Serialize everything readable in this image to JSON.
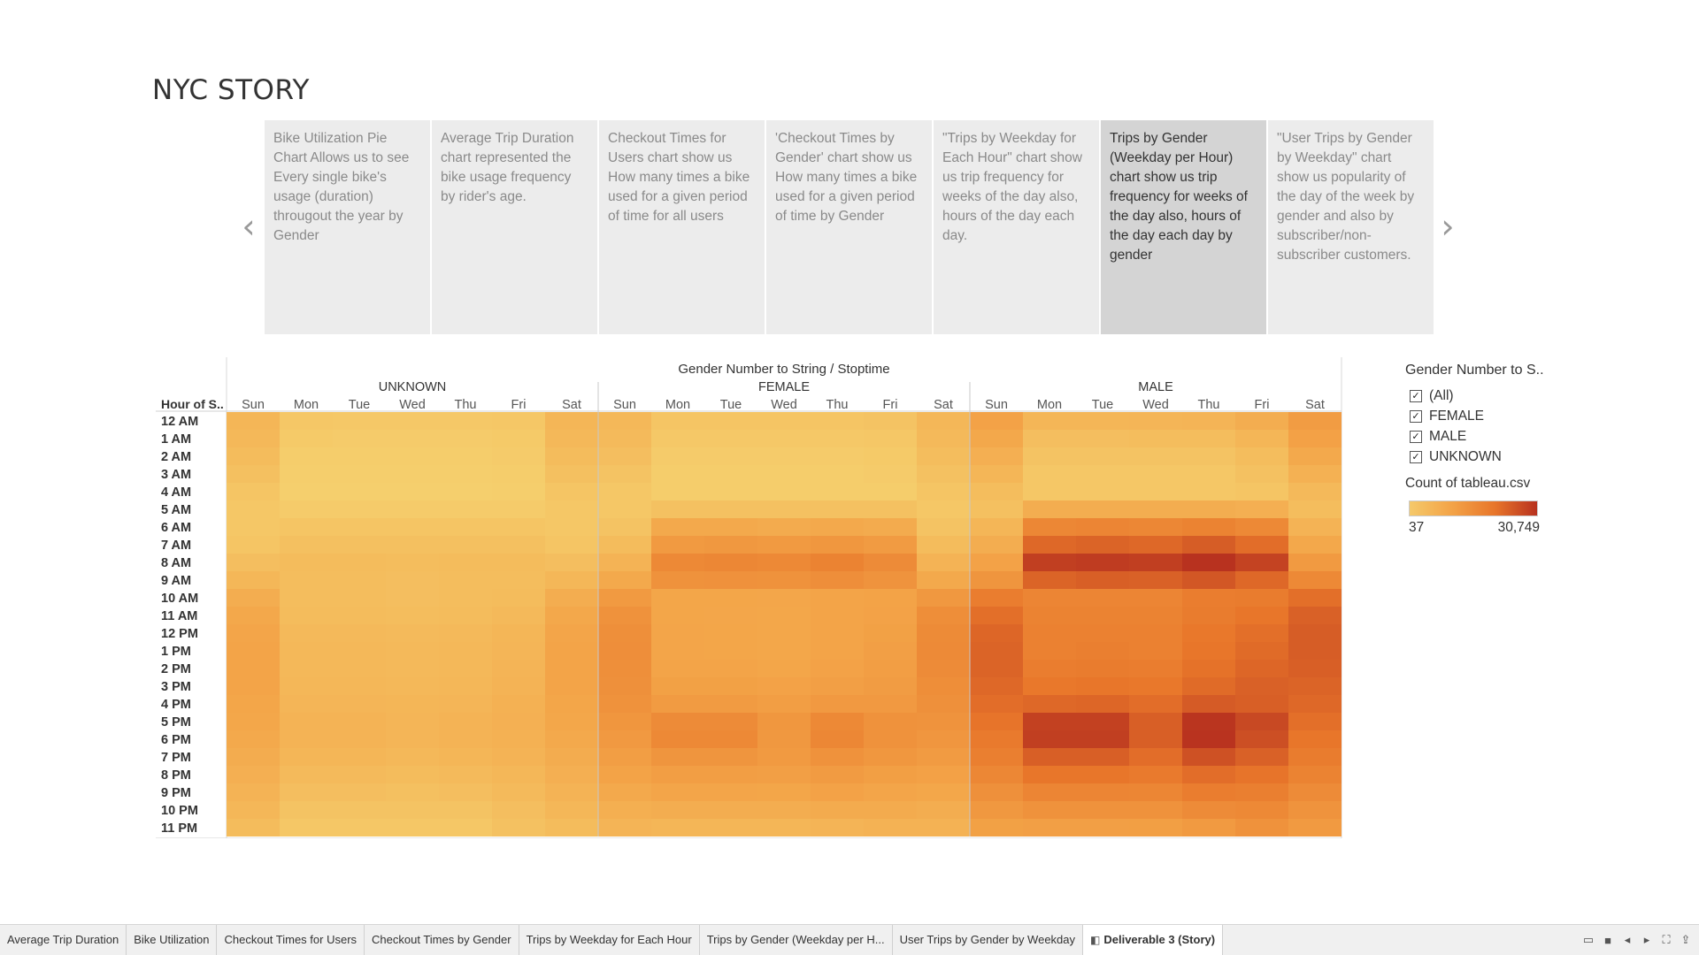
{
  "story": {
    "title": "NYC STORY",
    "prev_arrow": "‹",
    "next_arrow": "›",
    "points": [
      "Bike Utilization Pie Chart Allows us to see Every single bike's usage (duration) througout the year by Gender",
      "Average Trip Duration chart represented the bike usage frequency by rider's age.",
      "Checkout Times for Users chart show us How many times a bike used for a given period of time for all users",
      "'Checkout Times by Gender' chart show us How many times a bike used for a given period of time by Gender",
      "\"Trips by Weekday for Each Hour\"  chart show us trip frequency for weeks of the day also, hours of the day each day.",
      "Trips by Gender (Weekday per Hour) chart show us trip frequency for weeks of the day also, hours of the day each day by gender",
      "\"User Trips by Gender by Weekday\" chart show us popularity of the day of the week by gender  and also by subscriber/non-subscriber customers."
    ],
    "active_point": 5
  },
  "legend": {
    "filter_title": "Gender Number to S..",
    "items": [
      "(All)",
      "FEMALE",
      "MALE",
      "UNKNOWN"
    ],
    "check_glyph": "✓",
    "count_title": "Count of tableau.csv",
    "min_label": "37",
    "max_label": "30,749"
  },
  "tabs": {
    "items": [
      "Average Trip Duration",
      "Bike Utilization",
      "Checkout Times for Users",
      "Checkout Times by Gender",
      "Trips by Weekday for Each Hour",
      "Trips by Gender (Weekday per H...",
      "User Trips by Gender by Weekday",
      "Deliverable 3 (Story)"
    ],
    "active_index": 7,
    "story_icon": "◧",
    "controls": [
      "▭",
      "■",
      "◂",
      "▸",
      "⛶",
      "⇪"
    ]
  },
  "chart_data": {
    "type": "heatmap",
    "title": "Gender Number to String / Stoptime",
    "row_header": "Hour of S..",
    "groups": [
      "UNKNOWN",
      "FEMALE",
      "MALE"
    ],
    "days": [
      "Sun",
      "Mon",
      "Tue",
      "Wed",
      "Thu",
      "Fri",
      "Sat"
    ],
    "hours": [
      "12 AM",
      "1 AM",
      "2 AM",
      "3 AM",
      "4 AM",
      "5 AM",
      "6 AM",
      "7 AM",
      "8 AM",
      "9 AM",
      "10 AM",
      "11 AM",
      "12 PM",
      "1 PM",
      "2 PM",
      "3 PM",
      "4 PM",
      "5 PM",
      "6 PM",
      "7 PM",
      "8 PM",
      "9 PM",
      "10 PM",
      "11 PM"
    ],
    "color_min": 37,
    "color_max": 30749,
    "color_scale": [
      "#f5d06e",
      "#f3a347",
      "#e8762a",
      "#b8321f"
    ],
    "values": {
      "UNKNOWN": [
        [
          1500,
          300,
          250,
          250,
          250,
          300,
          1500
        ],
        [
          1300,
          200,
          150,
          150,
          150,
          200,
          1300
        ],
        [
          1000,
          100,
          100,
          100,
          100,
          150,
          1000
        ],
        [
          700,
          80,
          80,
          80,
          80,
          100,
          700
        ],
        [
          400,
          60,
          60,
          60,
          60,
          80,
          400
        ],
        [
          300,
          150,
          150,
          150,
          150,
          150,
          300
        ],
        [
          300,
          400,
          400,
          400,
          400,
          400,
          300
        ],
        [
          400,
          700,
          700,
          700,
          700,
          700,
          400
        ],
        [
          800,
          1000,
          1000,
          900,
          1000,
          1000,
          800
        ],
        [
          1400,
          900,
          900,
          800,
          900,
          900,
          1400
        ],
        [
          2500,
          900,
          900,
          800,
          900,
          1000,
          2500
        ],
        [
          3200,
          1000,
          1000,
          900,
          1000,
          1200,
          3200
        ],
        [
          3600,
          1200,
          1200,
          1100,
          1200,
          1500,
          3600
        ],
        [
          3800,
          1300,
          1300,
          1200,
          1300,
          1600,
          3800
        ],
        [
          3800,
          1300,
          1300,
          1200,
          1300,
          1700,
          3800
        ],
        [
          3700,
          1400,
          1400,
          1300,
          1400,
          1800,
          3700
        ],
        [
          3500,
          1600,
          1600,
          1500,
          1600,
          2000,
          3500
        ],
        [
          3300,
          1800,
          1800,
          1600,
          1800,
          2100,
          3300
        ],
        [
          3000,
          1800,
          1800,
          1600,
          1800,
          2000,
          3000
        ],
        [
          2600,
          1500,
          1500,
          1300,
          1500,
          1800,
          2600
        ],
        [
          2200,
          1100,
          1100,
          1000,
          1100,
          1400,
          2200
        ],
        [
          1800,
          800,
          800,
          700,
          800,
          1100,
          1800
        ],
        [
          1400,
          500,
          500,
          500,
          500,
          800,
          1400
        ],
        [
          1000,
          300,
          300,
          300,
          300,
          600,
          1000
        ]
      ],
      "FEMALE": [
        [
          1300,
          400,
          400,
          400,
          400,
          500,
          1400
        ],
        [
          1100,
          250,
          250,
          250,
          250,
          300,
          1200
        ],
        [
          800,
          150,
          150,
          150,
          150,
          200,
          900
        ],
        [
          500,
          100,
          100,
          100,
          100,
          150,
          600
        ],
        [
          300,
          100,
          100,
          100,
          100,
          100,
          400
        ],
        [
          300,
          600,
          600,
          600,
          600,
          600,
          300
        ],
        [
          500,
          3000,
          3000,
          2800,
          3000,
          2700,
          500
        ],
        [
          1000,
          5500,
          5800,
          5500,
          6000,
          5300,
          1000
        ],
        [
          1800,
          9000,
          9500,
          9000,
          10500,
          8500,
          1800
        ],
        [
          3000,
          7000,
          7200,
          7000,
          7800,
          6800,
          3000
        ],
        [
          5500,
          3500,
          3500,
          3400,
          3800,
          3900,
          5800
        ],
        [
          7000,
          3500,
          3400,
          3300,
          3700,
          4000,
          8000
        ],
        [
          7600,
          3600,
          3500,
          3300,
          3800,
          4300,
          8600
        ],
        [
          7800,
          3600,
          3500,
          3300,
          3800,
          4500,
          8800
        ],
        [
          7700,
          3800,
          3800,
          3500,
          4000,
          4700,
          8500
        ],
        [
          7400,
          4300,
          4300,
          4000,
          4500,
          5000,
          8000
        ],
        [
          7000,
          5300,
          5300,
          4800,
          5600,
          5600,
          7400
        ],
        [
          6300,
          8500,
          8500,
          6000,
          9000,
          7000,
          6800
        ],
        [
          5600,
          9000,
          9000,
          5800,
          9500,
          7000,
          6200
        ],
        [
          4800,
          6500,
          6500,
          5500,
          7000,
          6000,
          5300
        ],
        [
          3900,
          4800,
          4800,
          4500,
          5200,
          4600,
          4200
        ],
        [
          3000,
          3600,
          3600,
          3500,
          4000,
          3600,
          3300
        ],
        [
          2300,
          2500,
          2500,
          2500,
          2800,
          2700,
          2500
        ],
        [
          1700,
          1500,
          1500,
          1500,
          1700,
          1900,
          1900
        ]
      ],
      "MALE": [
        [
          4000,
          1500,
          1500,
          1600,
          1700,
          2500,
          5000
        ],
        [
          3200,
          800,
          800,
          900,
          900,
          1500,
          4200
        ],
        [
          2200,
          500,
          500,
          500,
          500,
          900,
          3000
        ],
        [
          1500,
          300,
          300,
          300,
          300,
          600,
          2000
        ],
        [
          900,
          300,
          300,
          300,
          300,
          400,
          1200
        ],
        [
          700,
          2500,
          2500,
          2500,
          2500,
          2200,
          900
        ],
        [
          1500,
          9500,
          10000,
          9500,
          10500,
          9000,
          1800
        ],
        [
          2500,
          17000,
          18000,
          17000,
          19500,
          16000,
          3200
        ],
        [
          4000,
          27000,
          28000,
          27000,
          30749,
          26000,
          5500
        ],
        [
          6500,
          18000,
          19000,
          18500,
          21000,
          17000,
          9000
        ],
        [
          12000,
          10000,
          10000,
          10000,
          12000,
          12500,
          15500
        ],
        [
          15500,
          10500,
          10500,
          10500,
          12500,
          14000,
          18500
        ],
        [
          17500,
          11000,
          11000,
          11000,
          13500,
          15500,
          19500
        ],
        [
          18000,
          11000,
          11500,
          11000,
          14000,
          16500,
          19500
        ],
        [
          18000,
          12000,
          12500,
          12000,
          15000,
          17500,
          19000
        ],
        [
          17000,
          13500,
          14000,
          13500,
          16500,
          18500,
          18000
        ],
        [
          16000,
          17000,
          17500,
          16000,
          20000,
          19000,
          17000
        ],
        [
          14500,
          26500,
          26500,
          19000,
          30000,
          24500,
          15500
        ],
        [
          13000,
          27000,
          27000,
          19000,
          30500,
          23000,
          14000
        ],
        [
          11500,
          19000,
          19000,
          16000,
          22500,
          18500,
          12500
        ],
        [
          9500,
          14000,
          14000,
          13000,
          16000,
          14500,
          10500
        ],
        [
          7500,
          10000,
          10000,
          9800,
          12000,
          11500,
          8500
        ],
        [
          5800,
          7000,
          7000,
          7000,
          8500,
          9000,
          6800
        ],
        [
          4300,
          4500,
          4500,
          4600,
          5500,
          7000,
          5400
        ]
      ]
    }
  }
}
